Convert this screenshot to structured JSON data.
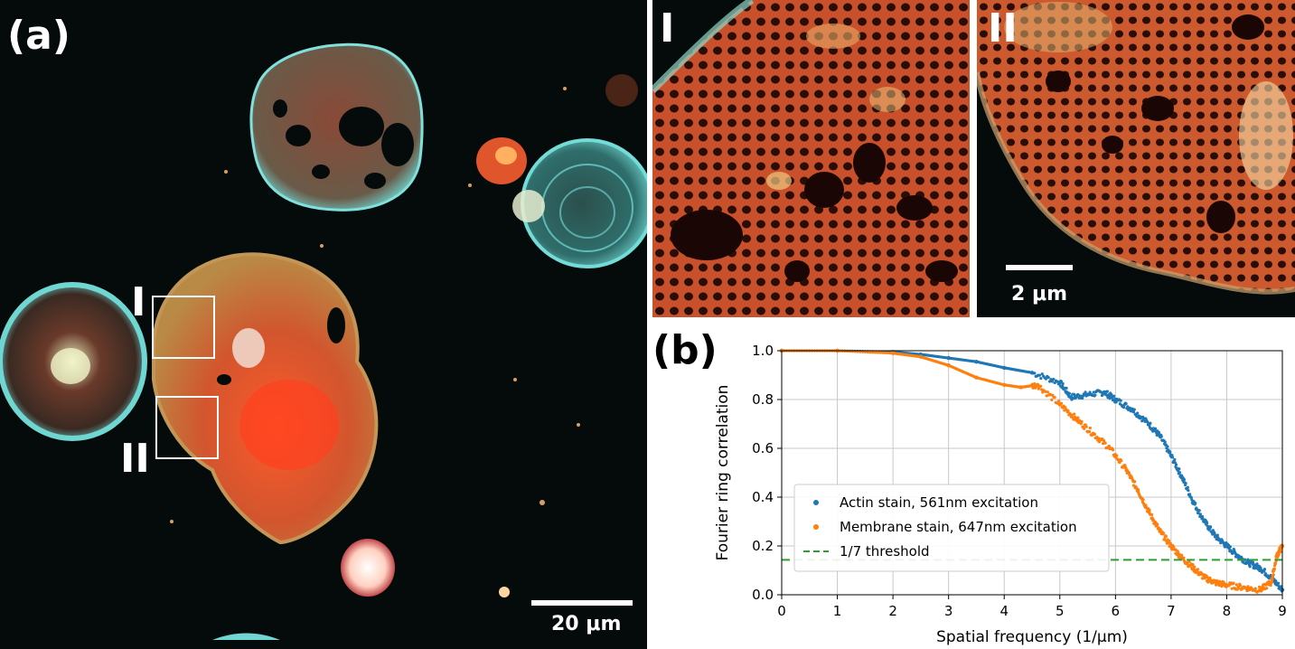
{
  "panel_a": {
    "label": "(a)",
    "roi_labels": [
      "I",
      "II"
    ],
    "scalebar_label": "20 μm"
  },
  "insets": [
    {
      "label": "I"
    },
    {
      "label": "II",
      "scalebar_label": "2 μm"
    }
  ],
  "panel_b": {
    "label": "(b)"
  },
  "colors": {
    "actin": "#1f77b4",
    "membrane": "#ff7f0e",
    "threshold": "#2ca02c",
    "cyan_stain": "#6fd6d2",
    "red_stain": "#c8452a",
    "background": "#050b0a"
  },
  "chart_data": {
    "type": "scatter",
    "xlabel": "Spatial frequency (1/μm)",
    "ylabel": "Fourier ring correlation",
    "xlim": [
      0,
      9
    ],
    "ylim": [
      0,
      1.0
    ],
    "xticks": [
      "0",
      "1",
      "2",
      "3",
      "4",
      "5",
      "6",
      "7",
      "8",
      "9"
    ],
    "yticks": [
      "0.0",
      "0.2",
      "0.4",
      "0.6",
      "0.8",
      "1.0"
    ],
    "grid": true,
    "legend_position": "lower-left",
    "series": [
      {
        "name": "Actin stain, 561nm excitation",
        "x": [
          0,
          1,
          2,
          2.5,
          3,
          3.5,
          4,
          4.5,
          5,
          5.2,
          5.5,
          5.8,
          6.0,
          6.3,
          6.6,
          6.8,
          7.0,
          7.2,
          7.4,
          7.6,
          7.8,
          8.0,
          8.2,
          8.4,
          8.6,
          8.8,
          9.0
        ],
        "y": [
          1.0,
          1.0,
          0.995,
          0.985,
          0.97,
          0.955,
          0.93,
          0.91,
          0.87,
          0.81,
          0.82,
          0.83,
          0.8,
          0.76,
          0.7,
          0.65,
          0.57,
          0.48,
          0.38,
          0.3,
          0.24,
          0.2,
          0.16,
          0.13,
          0.11,
          0.07,
          0.02
        ]
      },
      {
        "name": "Membrane stain, 647nm excitation",
        "x": [
          0,
          1,
          2,
          2.5,
          3,
          3.5,
          4,
          4.3,
          4.6,
          5.0,
          5.3,
          5.6,
          5.9,
          6.2,
          6.4,
          6.6,
          6.8,
          7.0,
          7.2,
          7.4,
          7.6,
          7.8,
          8.0,
          8.3,
          8.6,
          8.8,
          8.9,
          9.0
        ],
        "y": [
          1.0,
          1.0,
          0.99,
          0.975,
          0.94,
          0.89,
          0.86,
          0.85,
          0.86,
          0.78,
          0.72,
          0.66,
          0.6,
          0.51,
          0.43,
          0.34,
          0.26,
          0.2,
          0.15,
          0.11,
          0.07,
          0.05,
          0.04,
          0.03,
          0.02,
          0.05,
          0.16,
          0.2
        ]
      },
      {
        "name": "1/7 threshold",
        "y_constant": 0.142857
      }
    ]
  }
}
